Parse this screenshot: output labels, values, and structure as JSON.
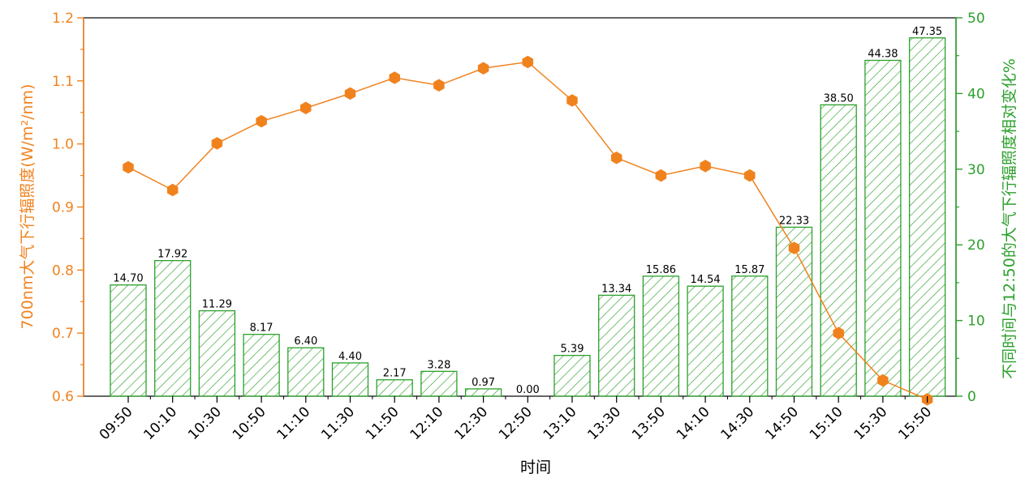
{
  "chart_data": {
    "type": "bar",
    "xlabel": "时间",
    "categories": [
      "09:50",
      "10:10",
      "10:30",
      "10:50",
      "11:10",
      "11:30",
      "11:50",
      "12:10",
      "12:30",
      "12:50",
      "13:10",
      "13:30",
      "13:50",
      "14:10",
      "14:30",
      "14:50",
      "15:10",
      "15:30",
      "15:50"
    ],
    "series": [
      {
        "type": "bar",
        "axis": "right",
        "values": [
          14.7,
          17.92,
          11.29,
          8.17,
          6.4,
          4.4,
          2.17,
          3.28,
          0.97,
          0.0,
          5.39,
          13.34,
          15.86,
          14.54,
          15.87,
          22.33,
          38.5,
          44.38,
          47.35
        ],
        "labels": [
          "14.70",
          "17.92",
          "11.29",
          "8.17",
          "6.40",
          "4.40",
          "2.17",
          "3.28",
          "0.97",
          "0.00",
          "5.39",
          "13.34",
          "15.86",
          "14.54",
          "15.87",
          "22.33",
          "38.50",
          "44.38",
          "47.35"
        ]
      },
      {
        "type": "line",
        "axis": "left",
        "values": [
          0.963,
          0.927,
          1.001,
          1.036,
          1.057,
          1.08,
          1.105,
          1.093,
          1.12,
          1.13,
          1.069,
          0.978,
          0.95,
          0.965,
          0.95,
          0.835,
          0.7,
          0.625,
          0.595
        ]
      }
    ],
    "y_left": {
      "label": "700nm大气下行辐照度(W/m²/nm)",
      "range": [
        0.6,
        1.2
      ],
      "ticks": [
        "0.6",
        "0.7",
        "0.8",
        "0.9",
        "1.0",
        "1.1",
        "1.2"
      ]
    },
    "y_right": {
      "label": "不同时间与12:50的大气下行辐照度相对变化%",
      "range": [
        0,
        50
      ],
      "ticks": [
        "0",
        "10",
        "20",
        "30",
        "40",
        "50"
      ]
    },
    "colors": {
      "line": "#f0821e",
      "bar": "#2ca02c"
    },
    "grid": false,
    "legend": "none"
  }
}
